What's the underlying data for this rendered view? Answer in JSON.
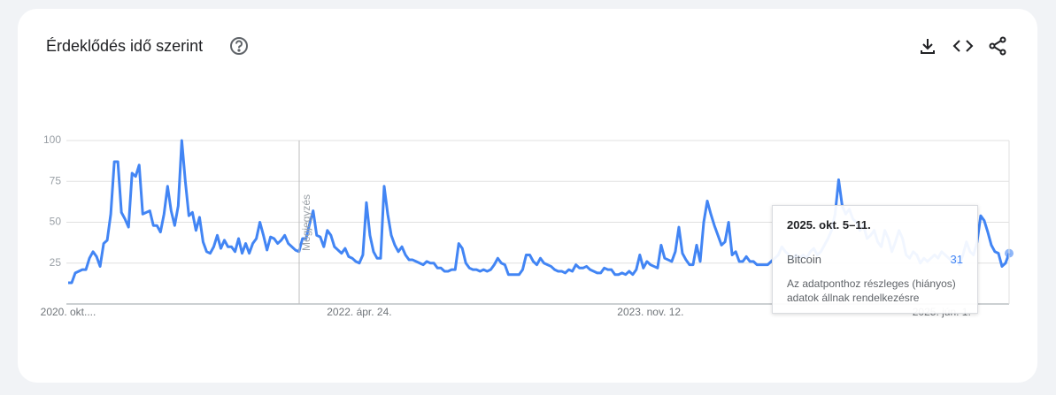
{
  "chart_data": {
    "type": "line",
    "title": "Érdeklődés idő szerint",
    "annotation": "Megjegyzés",
    "categories": [
      "2020. okt....",
      null,
      null,
      null,
      null,
      null,
      null,
      null,
      null,
      null,
      null,
      null,
      null,
      null,
      null,
      null,
      null,
      null,
      null,
      null,
      null,
      null,
      null,
      null,
      null,
      null,
      null,
      null,
      null,
      null,
      null,
      null,
      null,
      null,
      null,
      null,
      null,
      null,
      null,
      null,
      null,
      null,
      null,
      null,
      null,
      null,
      null,
      null,
      null,
      null,
      null,
      null,
      null,
      null,
      null,
      null,
      null,
      null,
      null,
      null,
      null,
      null,
      null,
      null,
      null,
      null,
      null,
      null,
      null,
      null,
      null,
      null,
      null,
      null,
      null,
      null,
      null,
      null,
      null,
      null,
      null,
      null,
      "2022. ápr. 24.",
      null,
      null,
      null,
      null,
      null,
      null,
      null,
      null,
      null,
      null,
      null,
      null,
      null,
      null,
      null,
      null,
      null,
      null,
      null,
      null,
      null,
      null,
      null,
      null,
      null,
      null,
      null,
      null,
      null,
      null,
      null,
      null,
      null,
      null,
      null,
      null,
      null,
      null,
      null,
      null,
      null,
      null,
      null,
      null,
      null,
      null,
      null,
      null,
      null,
      null,
      null,
      null,
      null,
      null,
      null,
      null,
      null,
      null,
      null,
      null,
      null,
      null,
      null,
      null,
      null,
      null,
      null,
      null,
      null,
      null,
      null,
      null,
      null,
      null,
      null,
      null,
      null,
      null,
      null,
      null,
      null,
      "2023. nov. 12.",
      null,
      null,
      null,
      null,
      null,
      null,
      null,
      null,
      null,
      null,
      null,
      null,
      null,
      null,
      null,
      null,
      null,
      null,
      null,
      null,
      null,
      null,
      null,
      null,
      null,
      null,
      null,
      null,
      null,
      null,
      null,
      null,
      null,
      null,
      null,
      null,
      null,
      null,
      null,
      null,
      null,
      null,
      null,
      null,
      null,
      null,
      null,
      null,
      null,
      null,
      null,
      null,
      null,
      null,
      null,
      null,
      null,
      null,
      null,
      null,
      null,
      null,
      null,
      null,
      null,
      null,
      null,
      null,
      null,
      null,
      null,
      null,
      null,
      null,
      null,
      null,
      null,
      null,
      null,
      null,
      null,
      "2025. jún. 1.",
      null,
      null,
      null,
      null,
      null,
      null,
      null,
      null,
      null,
      null,
      null,
      null,
      null,
      null,
      null,
      null,
      null,
      null,
      null
    ],
    "series": [
      {
        "name": "Bitcoin",
        "color": "#4285f4",
        "values": [
          13,
          13,
          19,
          20,
          21,
          21,
          28,
          32,
          29,
          23,
          37,
          39,
          55,
          87,
          87,
          56,
          52,
          47,
          80,
          78,
          85,
          55,
          56,
          57,
          48,
          48,
          44,
          55,
          72,
          57,
          48,
          60,
          100,
          75,
          54,
          56,
          45,
          53,
          38,
          32,
          31,
          35,
          42,
          34,
          39,
          35,
          35,
          32,
          40,
          31,
          37,
          31,
          37,
          40,
          50,
          42,
          33,
          41,
          40,
          37,
          39,
          42,
          37,
          35,
          33,
          32,
          40,
          40,
          49,
          57,
          42,
          41,
          35,
          45,
          42,
          35,
          33,
          31,
          34,
          29,
          28,
          26,
          25,
          30,
          62,
          42,
          32,
          28,
          28,
          72,
          55,
          42,
          36,
          32,
          35,
          30,
          27,
          27,
          26,
          25,
          24,
          26,
          25,
          25,
          22,
          22,
          20,
          20,
          21,
          21,
          37,
          34,
          25,
          22,
          21,
          21,
          20,
          21,
          20,
          21,
          24,
          28,
          25,
          24,
          18,
          18,
          18,
          18,
          21,
          30,
          30,
          26,
          24,
          28,
          25,
          24,
          23,
          21,
          20,
          20,
          19,
          21,
          20,
          24,
          22,
          22,
          23,
          21,
          20,
          19,
          19,
          22,
          21,
          21,
          18,
          18,
          19,
          18,
          20,
          18,
          21,
          30,
          22,
          26,
          24,
          23,
          22,
          36,
          28,
          27,
          26,
          32,
          47,
          31,
          27,
          24,
          24,
          36,
          26,
          50,
          63,
          55,
          48,
          42,
          36,
          38,
          50,
          30,
          32,
          26,
          26,
          29,
          26,
          26,
          24,
          24,
          24,
          24,
          26,
          28,
          30,
          35,
          32,
          30,
          28,
          30,
          28,
          30,
          28,
          32,
          34,
          30,
          32,
          36,
          40,
          45,
          55,
          76,
          60,
          55,
          58,
          52,
          50,
          45,
          48,
          40,
          42,
          45,
          38,
          35,
          45,
          40,
          32,
          38,
          45,
          40,
          30,
          28,
          32,
          30,
          25,
          28,
          26,
          28,
          30,
          28,
          32,
          30,
          28,
          26,
          28,
          24,
          30,
          38,
          32,
          30,
          38,
          54,
          51,
          44,
          36,
          32,
          31,
          23,
          25,
          31
        ]
      }
    ],
    "ylim": [
      0,
      100
    ],
    "yticks": [
      25,
      50,
      75,
      100
    ],
    "grid": true,
    "tooltip": {
      "title": "2025. okt. 5–11.",
      "note": "Az adatponthoz részleges (hiányos) adatok állnak rendelkezésre"
    }
  }
}
